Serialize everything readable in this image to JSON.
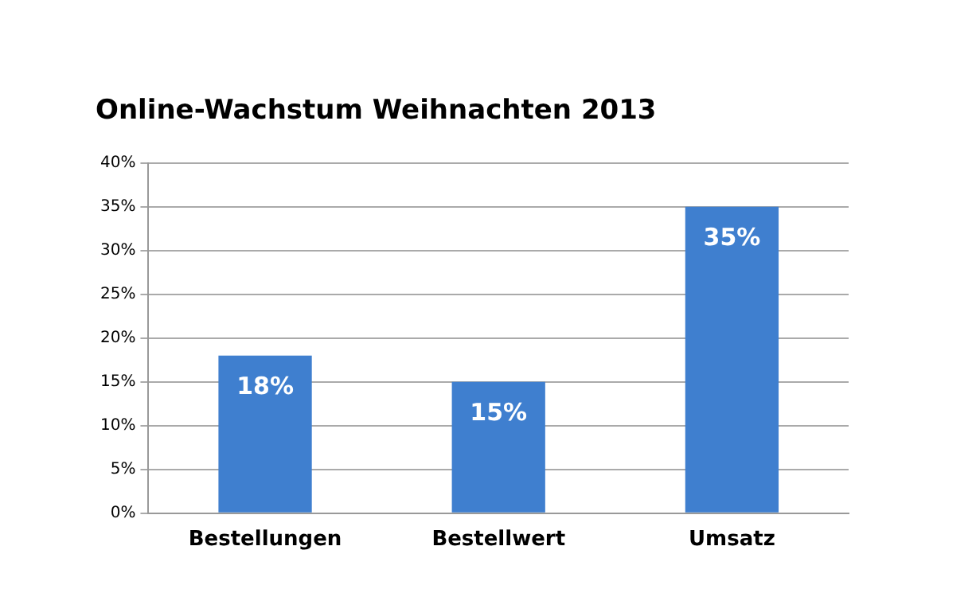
{
  "chart_data": {
    "type": "bar",
    "title": "Online-Wachstum Weihnachten 2013",
    "categories": [
      "Bestellungen",
      "Bestellwert",
      "Umsatz"
    ],
    "values": [
      18,
      15,
      35
    ],
    "value_labels": [
      "18%",
      "15%",
      "35%"
    ],
    "color": "#3f7fcf",
    "ylim": [
      0,
      40
    ],
    "yticks": [
      {
        "value": 0,
        "label": "0%"
      },
      {
        "value": 5,
        "label": "5%"
      },
      {
        "value": 10,
        "label": "10%"
      },
      {
        "value": 15,
        "label": "15%"
      },
      {
        "value": 20,
        "label": "20%"
      },
      {
        "value": 25,
        "label": "25%"
      },
      {
        "value": 30,
        "label": "30%"
      },
      {
        "value": 35,
        "label": "35%"
      },
      {
        "value": 40,
        "label": "40%"
      }
    ],
    "grid": "y"
  }
}
